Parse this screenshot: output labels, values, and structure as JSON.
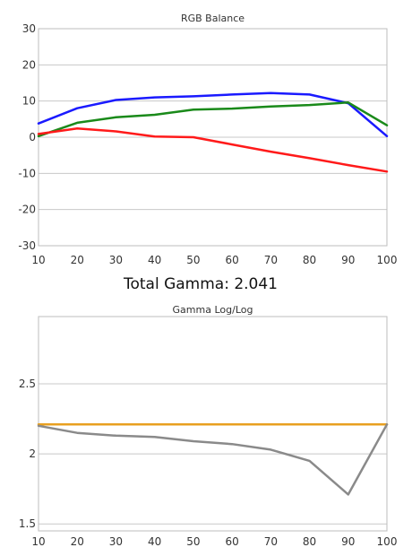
{
  "chart_data": [
    {
      "type": "line",
      "title": "RGB Balance",
      "x": [
        10,
        20,
        30,
        40,
        50,
        60,
        70,
        80,
        90,
        100
      ],
      "ylim": [
        -30,
        30
      ],
      "yticks": [
        -30,
        -20,
        -10,
        0,
        10,
        20,
        30
      ],
      "xticks": [
        10,
        20,
        30,
        40,
        50,
        60,
        70,
        80,
        90,
        100
      ],
      "grid": "horizontal",
      "series": [
        {
          "color": "#1a1aff",
          "values": [
            3.8,
            8.0,
            10.3,
            11.0,
            11.3,
            11.8,
            12.2,
            11.8,
            9.4,
            0.3
          ]
        },
        {
          "color": "#1a8a1a",
          "values": [
            0.3,
            4.0,
            5.5,
            6.2,
            7.6,
            7.9,
            8.5,
            8.9,
            9.6,
            3.3
          ]
        },
        {
          "color": "#ff1a1a",
          "values": [
            0.9,
            2.4,
            1.6,
            0.2,
            0.0,
            -2.0,
            -4.0,
            -5.8,
            -7.7,
            -9.5
          ]
        }
      ]
    },
    {
      "type": "line",
      "title": "Gamma Log/Log",
      "x": [
        10,
        20,
        30,
        40,
        50,
        60,
        70,
        80,
        90,
        100
      ],
      "ylim": [
        1.45,
        2.98
      ],
      "yticks": [
        1.5,
        2,
        2.5
      ],
      "ytick_labels": [
        "1.5",
        "2",
        "2.5"
      ],
      "xticks": [
        10,
        20,
        30,
        40,
        50,
        60,
        70,
        80,
        90,
        100
      ],
      "grid": "horizontal",
      "series": [
        {
          "color": "#e8a020",
          "values": [
            2.21,
            2.21,
            2.21,
            2.21,
            2.21,
            2.21,
            2.21,
            2.21,
            2.21,
            2.21
          ]
        },
        {
          "color": "#8a8a8a",
          "values": [
            2.2,
            2.15,
            2.13,
            2.12,
            2.09,
            2.07,
            2.03,
            1.95,
            1.71,
            2.21
          ]
        }
      ]
    }
  ],
  "summary": {
    "total_gamma": "Total Gamma: 2.041"
  }
}
